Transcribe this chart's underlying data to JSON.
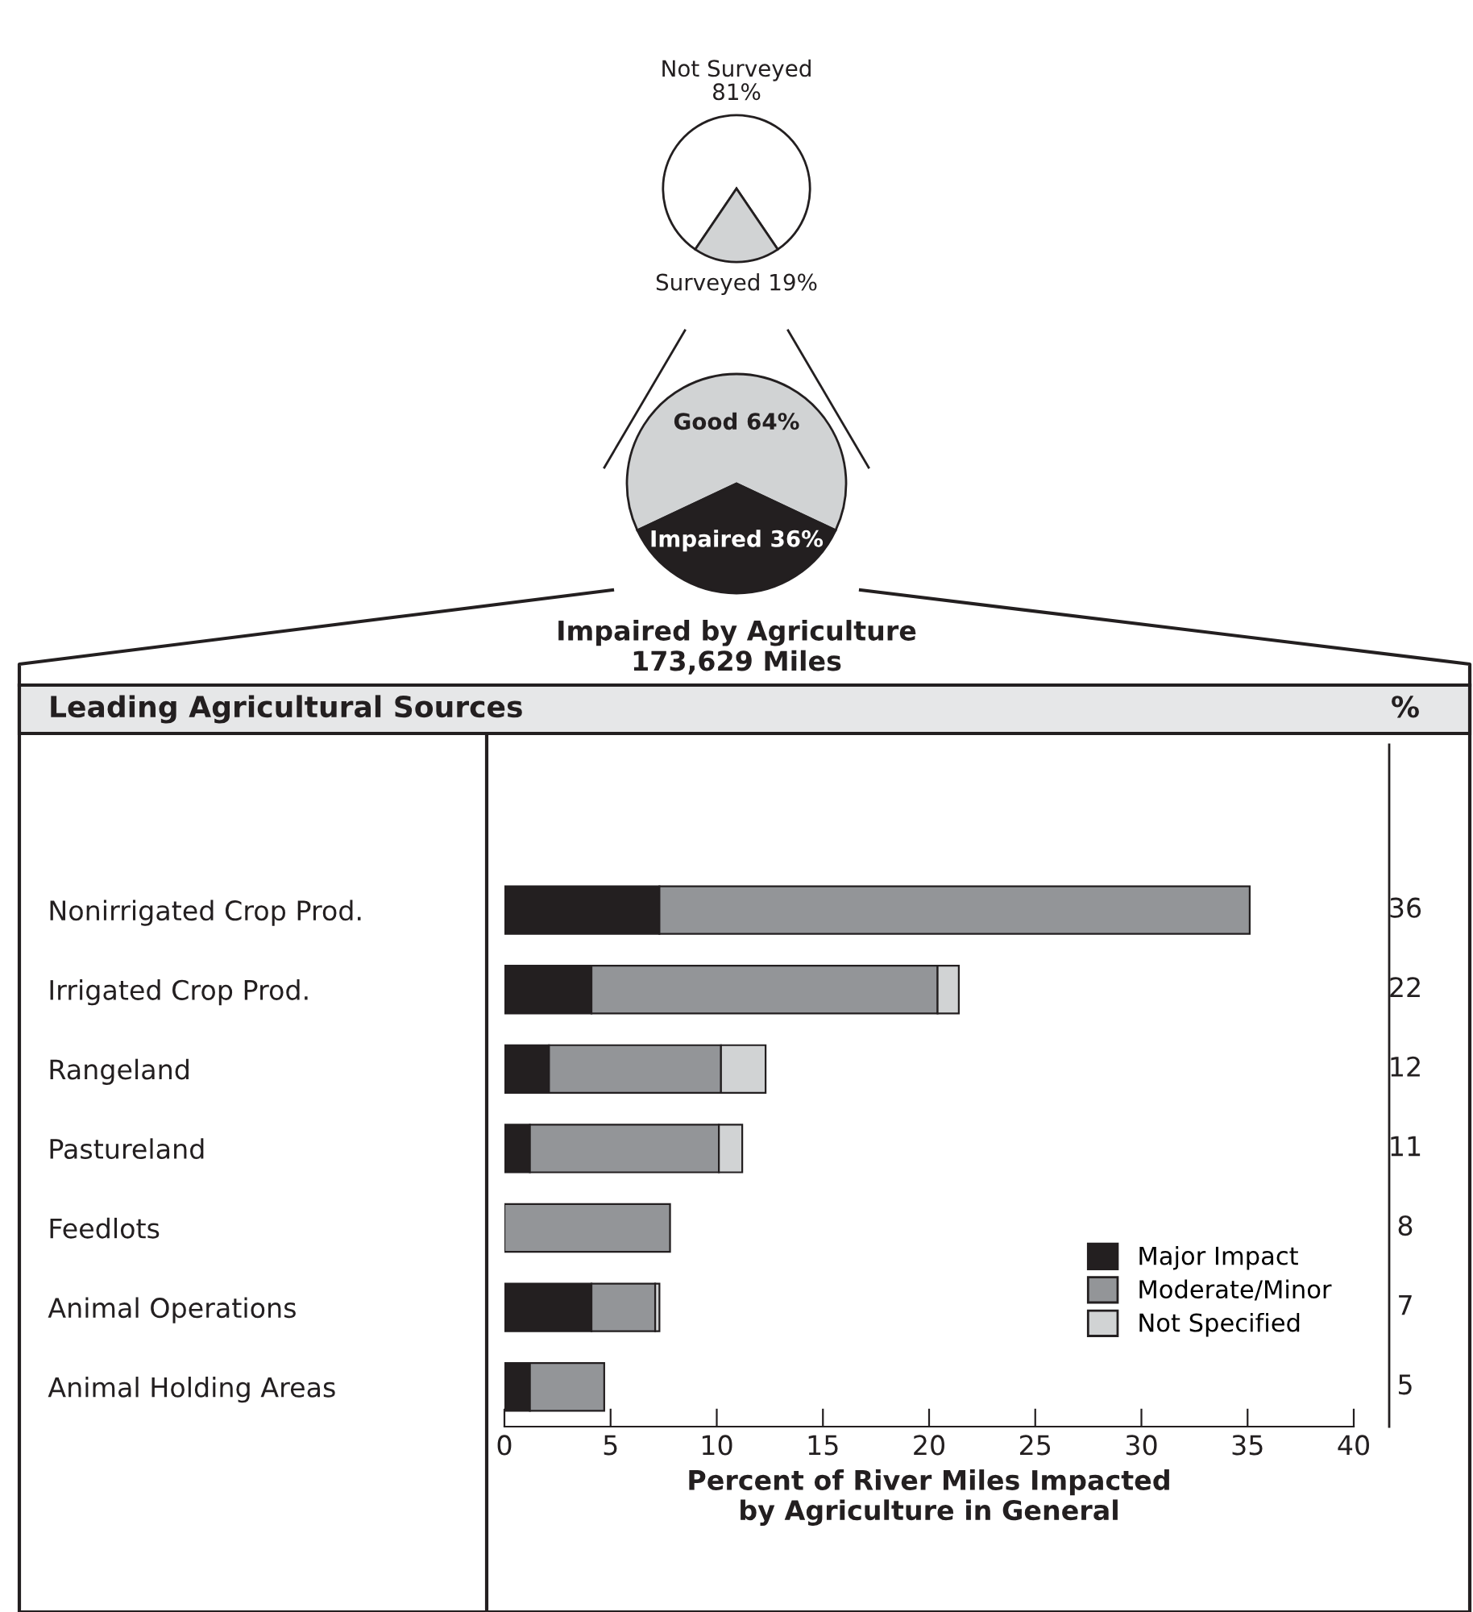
{
  "chart_data": [
    {
      "type": "pie",
      "categories": [
        "Not Surveyed\n81%",
        "Surveyed 19%"
      ],
      "values": [
        81,
        19
      ],
      "colors": [
        "#ffffff",
        "#d1d3d4"
      ]
    },
    {
      "type": "pie",
      "categories": [
        "Good 64%",
        "Impaired 36%"
      ],
      "values": [
        64,
        36
      ],
      "colors": [
        "#d1d3d4",
        "#231f20"
      ],
      "annotations": [
        "Impaired by Agriculture\n173,629 Miles"
      ]
    },
    {
      "type": "bar",
      "orientation": "horizontal",
      "stacked": true,
      "title": "Leading Agricultural Sources",
      "xlabel": "Percent of River Miles Impacted\nby Agriculture in General",
      "categories": [
        "Nonirrigated Crop Prod.",
        "Irrigated Crop Prod.",
        "Rangeland",
        "Pastureland",
        "Feedlots",
        "Animal Operations",
        "Animal Holding Areas"
      ],
      "series": [
        {
          "name": "Major Impact",
          "color": "#231f20",
          "values": [
            7.3,
            4.1,
            2.1,
            1.2,
            null,
            4.1,
            1.2
          ]
        },
        {
          "name": "Moderate/Minor",
          "color": "#939598",
          "values": [
            27.8,
            16.3,
            8.1,
            8.9,
            7.8,
            3.0,
            3.5
          ]
        },
        {
          "name": "Not Specified",
          "color": "#d1d3d4",
          "values": [
            null,
            1.0,
            2.1,
            1.1,
            null,
            0.2,
            null
          ]
        }
      ],
      "annotations": [
        "%",
        "36",
        "22",
        "12",
        "11",
        "8",
        "7",
        "5"
      ],
      "xlim": [
        0,
        40
      ],
      "xticks": [
        0,
        5,
        10,
        15,
        20,
        25,
        30,
        35,
        40
      ],
      "legend": "bottom right",
      "grid": false
    }
  ]
}
